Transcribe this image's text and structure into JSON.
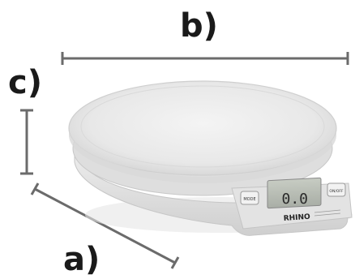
{
  "dimension_labels": {
    "a": "a)",
    "b": "b)",
    "c": "c)"
  },
  "scale": {
    "brand": "RHINO",
    "display_reading": "0.0",
    "left_button": "MODE",
    "right_button": "ON/OFF"
  },
  "colors": {
    "dimension_line": "#6b6b6b",
    "label_text": "#1a1a1a",
    "scale_body": "#e9e9e9",
    "lcd": "#b8bdb4"
  }
}
